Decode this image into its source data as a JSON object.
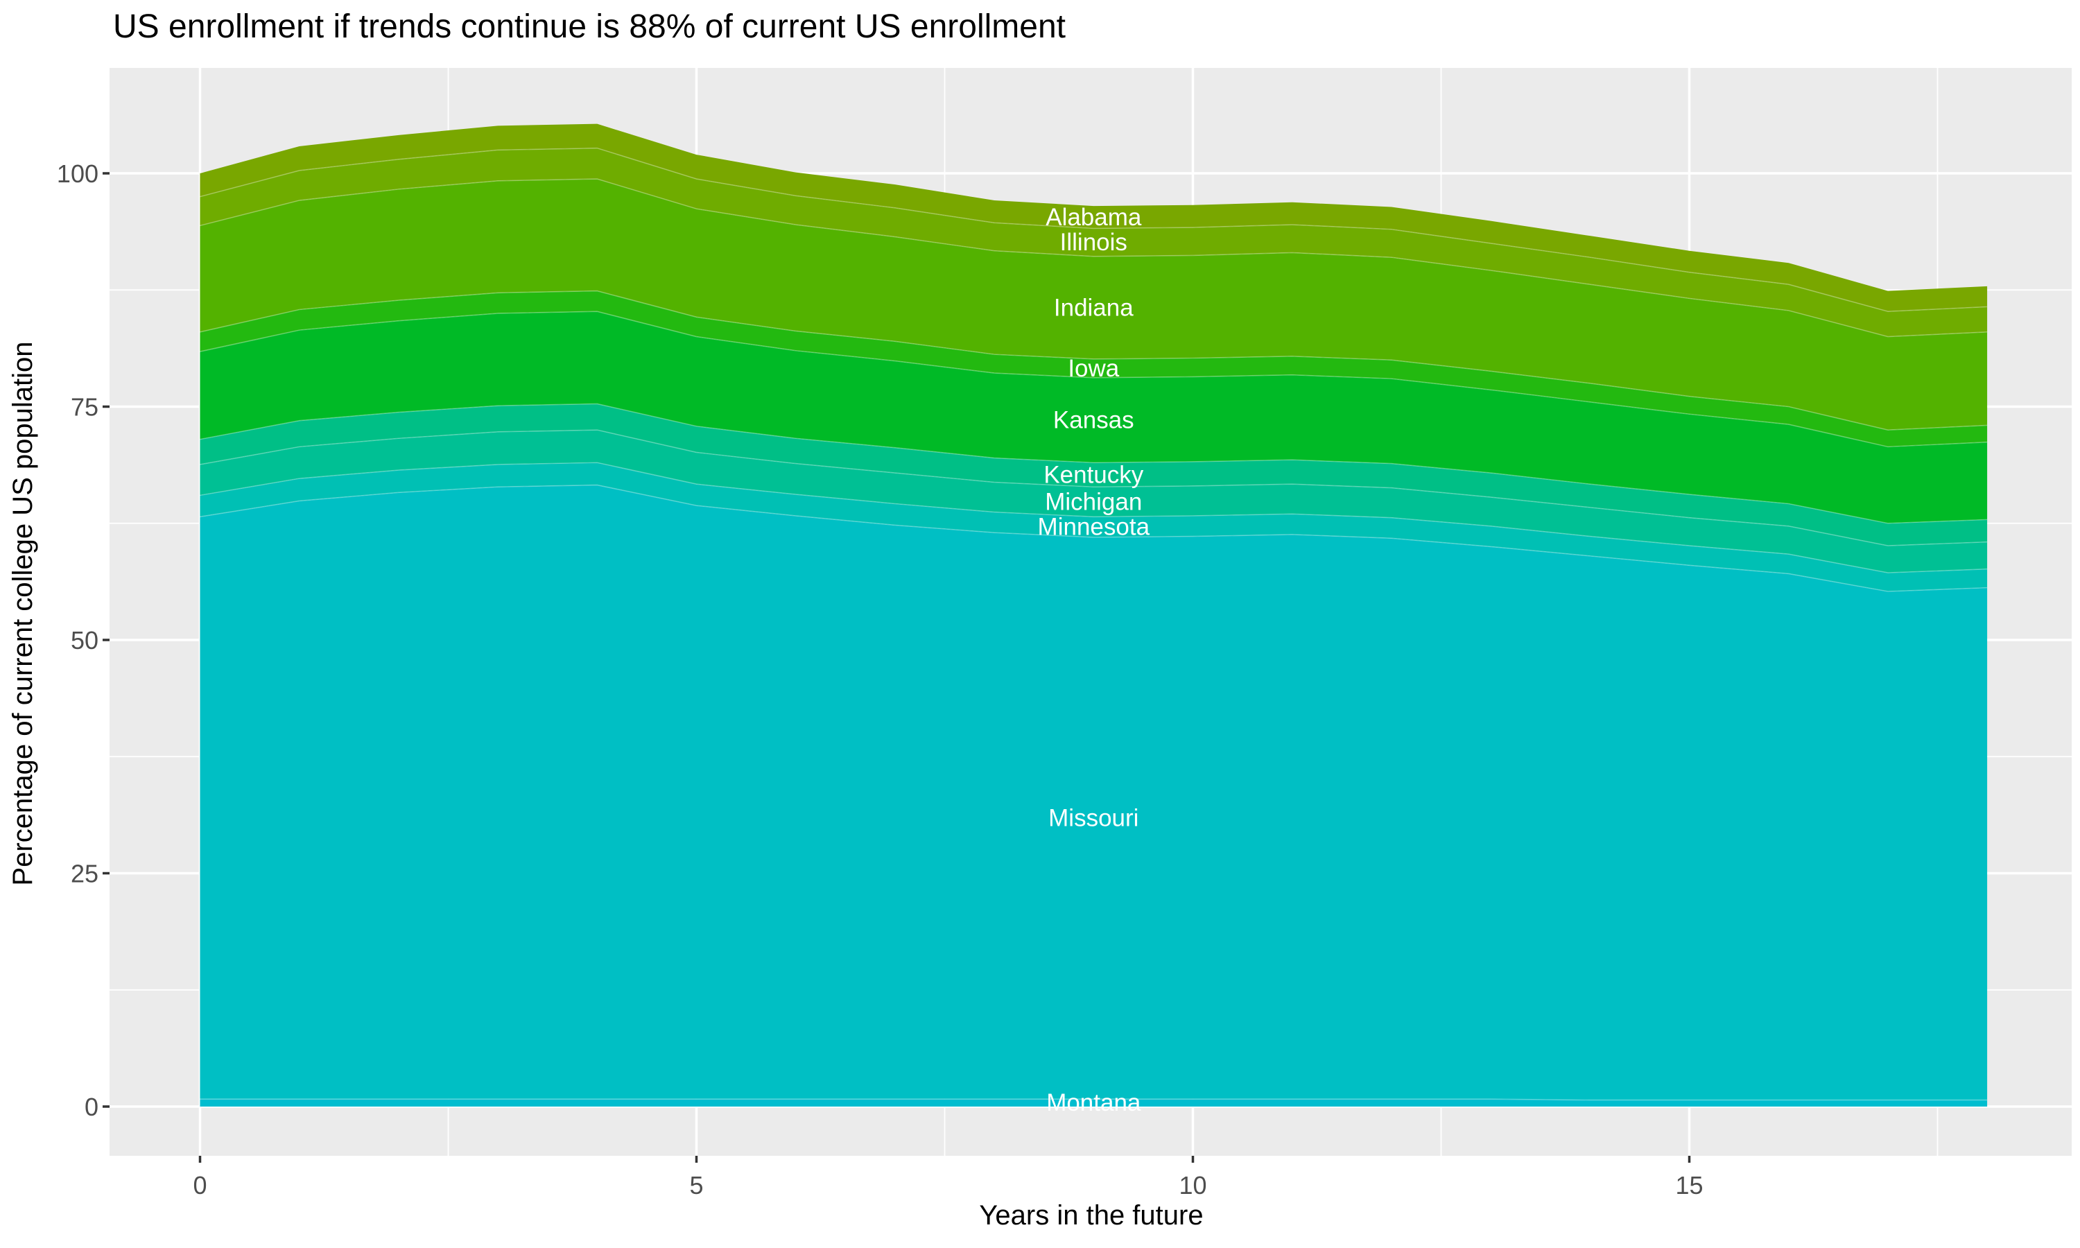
{
  "title": "US enrollment if trends continue is 88% of current US enrollment",
  "axes": {
    "x_title": "Years in the future",
    "y_title": "Percentage of current college US population",
    "x_ticks": [
      "0",
      "5",
      "10",
      "15"
    ],
    "y_ticks": [
      "0",
      "25",
      "50",
      "75",
      "100"
    ]
  },
  "colors": {
    "panel_background": "#EBEBEB",
    "gridline": "#FFFFFF",
    "tick_label": "#4D4D4D",
    "tick_mark": "#333333",
    "label_text": "#FFFFFF"
  },
  "chart_data": {
    "type": "area",
    "stacked": true,
    "title": "US enrollment if trends continue is 88% of current US enrollment",
    "xlabel": "Years in the future",
    "ylabel": "Percentage of current college US population",
    "x": [
      0,
      1,
      2,
      3,
      4,
      5,
      6,
      7,
      8,
      9,
      10,
      11,
      12,
      13,
      14,
      15,
      16,
      17,
      18
    ],
    "x_major": [
      0,
      5,
      10,
      15
    ],
    "x_minor": [
      2.5,
      7.5,
      12.5,
      17.5
    ],
    "y_major": [
      0,
      25,
      50,
      75,
      100
    ],
    "y_minor": [
      12.5,
      37.5,
      62.5,
      87.5
    ],
    "xlim": [
      -0.9,
      18.9
    ],
    "ylim": [
      -5.3,
      110.9
    ],
    "grid": true,
    "legend_position": "none",
    "label_x": 9,
    "series": [
      {
        "name": "Alabama",
        "color": "#79A700",
        "values": [
          2.5,
          2.6,
          2.6,
          2.6,
          2.6,
          2.6,
          2.5,
          2.5,
          2.4,
          2.4,
          2.4,
          2.4,
          2.4,
          2.4,
          2.3,
          2.3,
          2.3,
          2.2,
          2.2
        ]
      },
      {
        "name": "Illinois",
        "color": "#6FAC00",
        "values": [
          3.1,
          3.2,
          3.2,
          3.3,
          3.3,
          3.2,
          3.1,
          3.1,
          3.0,
          3.0,
          3.0,
          3.0,
          3.0,
          2.9,
          2.9,
          2.8,
          2.8,
          2.7,
          2.7
        ]
      },
      {
        "name": "Indiana",
        "color": "#53B200",
        "values": [
          11.4,
          11.7,
          11.9,
          12.0,
          12.0,
          11.6,
          11.4,
          11.2,
          11.1,
          11.0,
          11.0,
          11.1,
          11.0,
          10.8,
          10.6,
          10.5,
          10.3,
          10.0,
          10.0
        ]
      },
      {
        "name": "Iowa",
        "color": "#23B910",
        "values": [
          2.1,
          2.2,
          2.2,
          2.2,
          2.2,
          2.1,
          2.1,
          2.1,
          2.0,
          2.0,
          2.0,
          2.0,
          2.0,
          2.0,
          2.0,
          1.9,
          1.9,
          1.8,
          1.8
        ]
      },
      {
        "name": "Kansas",
        "color": "#00BA26",
        "values": [
          9.4,
          9.7,
          9.8,
          9.9,
          9.9,
          9.6,
          9.4,
          9.3,
          9.1,
          9.1,
          9.1,
          9.1,
          9.1,
          8.9,
          8.8,
          8.6,
          8.5,
          8.2,
          8.3
        ]
      },
      {
        "name": "Kentucky",
        "color": "#00BF86",
        "values": [
          2.7,
          2.8,
          2.8,
          2.8,
          2.8,
          2.8,
          2.7,
          2.7,
          2.6,
          2.6,
          2.6,
          2.6,
          2.6,
          2.6,
          2.5,
          2.5,
          2.4,
          2.4,
          2.4
        ]
      },
      {
        "name": "Michigan",
        "color": "#00C094",
        "values": [
          3.3,
          3.4,
          3.4,
          3.5,
          3.5,
          3.4,
          3.3,
          3.3,
          3.2,
          3.2,
          3.2,
          3.2,
          3.2,
          3.1,
          3.1,
          3.0,
          3.0,
          2.9,
          2.9
        ]
      },
      {
        "name": "Minnesota",
        "color": "#00C0B4",
        "values": [
          2.3,
          2.4,
          2.4,
          2.4,
          2.4,
          2.3,
          2.3,
          2.3,
          2.2,
          2.2,
          2.2,
          2.2,
          2.2,
          2.2,
          2.1,
          2.1,
          2.1,
          2.0,
          2.0
        ]
      },
      {
        "name": "Missouri",
        "color": "#00BFC4",
        "values": [
          62.4,
          64.1,
          65.0,
          65.6,
          65.8,
          63.6,
          62.5,
          61.5,
          60.7,
          60.2,
          60.3,
          60.5,
          60.1,
          59.2,
          58.3,
          57.3,
          56.4,
          54.5,
          54.9
        ]
      },
      {
        "name": "Montana",
        "color": "#00BDCF",
        "values": [
          0.8,
          0.8,
          0.8,
          0.8,
          0.8,
          0.8,
          0.8,
          0.8,
          0.8,
          0.8,
          0.8,
          0.8,
          0.8,
          0.8,
          0.7,
          0.7,
          0.7,
          0.7,
          0.7
        ]
      }
    ]
  }
}
